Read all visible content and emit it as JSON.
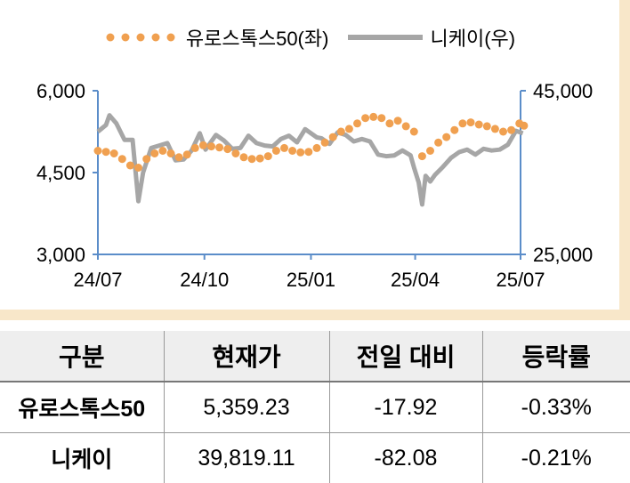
{
  "chart_data": {
    "type": "line",
    "legend_placement": "top",
    "x_ticks": [
      "24/07",
      "24/10",
      "25/01",
      "25/04",
      "25/07"
    ],
    "y_left": {
      "ticks": [
        "6,000",
        "4,500",
        "3,000"
      ],
      "ylim": [
        3000,
        6000
      ]
    },
    "y_right": {
      "ticks": [
        "45,000",
        "25,000"
      ],
      "ylim": [
        25000,
        45000
      ]
    },
    "series": [
      {
        "name": "유로스톡스50(좌)",
        "axis": "left",
        "color": "#f0a050",
        "style": "dotted",
        "points": [
          [
            "2024-07-01",
            4900
          ],
          [
            "2024-07-08",
            4880
          ],
          [
            "2024-07-15",
            4850
          ],
          [
            "2024-07-22",
            4750
          ],
          [
            "2024-07-29",
            4630
          ],
          [
            "2024-08-05",
            4590
          ],
          [
            "2024-08-12",
            4750
          ],
          [
            "2024-08-19",
            4850
          ],
          [
            "2024-08-26",
            4900
          ],
          [
            "2024-09-02",
            4850
          ],
          [
            "2024-09-09",
            4780
          ],
          [
            "2024-09-16",
            4830
          ],
          [
            "2024-09-23",
            4950
          ],
          [
            "2024-09-30",
            5000
          ],
          [
            "2024-10-07",
            4980
          ],
          [
            "2024-10-14",
            4960
          ],
          [
            "2024-10-21",
            4930
          ],
          [
            "2024-10-28",
            4850
          ],
          [
            "2024-11-04",
            4780
          ],
          [
            "2024-11-11",
            4750
          ],
          [
            "2024-11-18",
            4760
          ],
          [
            "2024-11-25",
            4800
          ],
          [
            "2024-12-02",
            4900
          ],
          [
            "2024-12-09",
            4950
          ],
          [
            "2024-12-16",
            4900
          ],
          [
            "2024-12-23",
            4870
          ],
          [
            "2024-12-30",
            4880
          ],
          [
            "2025-01-06",
            4950
          ],
          [
            "2025-01-13",
            5050
          ],
          [
            "2025-01-20",
            5150
          ],
          [
            "2025-01-27",
            5250
          ],
          [
            "2025-02-03",
            5300
          ],
          [
            "2025-02-10",
            5400
          ],
          [
            "2025-02-17",
            5500
          ],
          [
            "2025-02-24",
            5520
          ],
          [
            "2025-03-03",
            5500
          ],
          [
            "2025-03-10",
            5400
          ],
          [
            "2025-03-17",
            5450
          ],
          [
            "2025-03-24",
            5350
          ],
          [
            "2025-03-31",
            5250
          ],
          [
            "2025-04-07",
            4800
          ],
          [
            "2025-04-14",
            4900
          ],
          [
            "2025-04-21",
            5050
          ],
          [
            "2025-04-28",
            5150
          ],
          [
            "2025-05-05",
            5280
          ],
          [
            "2025-05-12",
            5400
          ],
          [
            "2025-05-19",
            5420
          ],
          [
            "2025-05-26",
            5380
          ],
          [
            "2025-06-02",
            5350
          ],
          [
            "2025-06-09",
            5300
          ],
          [
            "2025-06-16",
            5250
          ],
          [
            "2025-06-23",
            5280
          ],
          [
            "2025-06-30",
            5400
          ],
          [
            "2025-07-04",
            5359
          ]
        ]
      },
      {
        "name": "니케이(우)",
        "axis": "right",
        "color": "#a6a6a6",
        "style": "solid",
        "points": [
          [
            "2024-07-01",
            40000
          ],
          [
            "2024-07-08",
            40800
          ],
          [
            "2024-07-11",
            42000
          ],
          [
            "2024-07-17",
            41000
          ],
          [
            "2024-07-24",
            39000
          ],
          [
            "2024-07-31",
            39000
          ],
          [
            "2024-08-02",
            36000
          ],
          [
            "2024-08-05",
            31500
          ],
          [
            "2024-08-09",
            35000
          ],
          [
            "2024-08-16",
            38000
          ],
          [
            "2024-08-23",
            38300
          ],
          [
            "2024-08-30",
            38600
          ],
          [
            "2024-09-06",
            36500
          ],
          [
            "2024-09-13",
            36600
          ],
          [
            "2024-09-20",
            37700
          ],
          [
            "2024-09-27",
            39800
          ],
          [
            "2024-10-02",
            37800
          ],
          [
            "2024-10-11",
            39600
          ],
          [
            "2024-10-18",
            38900
          ],
          [
            "2024-10-25",
            37900
          ],
          [
            "2024-11-01",
            38000
          ],
          [
            "2024-11-08",
            39500
          ],
          [
            "2024-11-15",
            38600
          ],
          [
            "2024-11-22",
            38300
          ],
          [
            "2024-11-29",
            38200
          ],
          [
            "2024-12-06",
            39100
          ],
          [
            "2024-12-13",
            39500
          ],
          [
            "2024-12-20",
            38700
          ],
          [
            "2024-12-27",
            40300
          ],
          [
            "2025-01-06",
            39300
          ],
          [
            "2025-01-10",
            39200
          ],
          [
            "2025-01-17",
            38500
          ],
          [
            "2025-01-24",
            39900
          ],
          [
            "2025-01-31",
            39600
          ],
          [
            "2025-02-07",
            38800
          ],
          [
            "2025-02-14",
            39100
          ],
          [
            "2025-02-21",
            38800
          ],
          [
            "2025-02-28",
            37200
          ],
          [
            "2025-03-07",
            37000
          ],
          [
            "2025-03-14",
            37100
          ],
          [
            "2025-03-21",
            37700
          ],
          [
            "2025-03-28",
            37100
          ],
          [
            "2025-03-31",
            35600
          ],
          [
            "2025-04-04",
            33800
          ],
          [
            "2025-04-07",
            31100
          ],
          [
            "2025-04-10",
            34600
          ],
          [
            "2025-04-14",
            33900
          ],
          [
            "2025-04-18",
            34700
          ],
          [
            "2025-04-25",
            35700
          ],
          [
            "2025-05-02",
            36800
          ],
          [
            "2025-05-09",
            37500
          ],
          [
            "2025-05-16",
            37800
          ],
          [
            "2025-05-23",
            37200
          ],
          [
            "2025-05-30",
            37900
          ],
          [
            "2025-06-06",
            37700
          ],
          [
            "2025-06-13",
            37800
          ],
          [
            "2025-06-20",
            38400
          ],
          [
            "2025-06-27",
            40100
          ],
          [
            "2025-07-03",
            39800
          ]
        ]
      }
    ]
  },
  "table": {
    "headers": [
      "구분",
      "현재가",
      "전일 대비",
      "등락률"
    ],
    "rows": [
      [
        "유로스톡스50",
        "5,359.23",
        "-17.92",
        "-0.33%"
      ],
      [
        "니케이",
        "39,819.11",
        "-82.08",
        "-0.21%"
      ]
    ]
  }
}
